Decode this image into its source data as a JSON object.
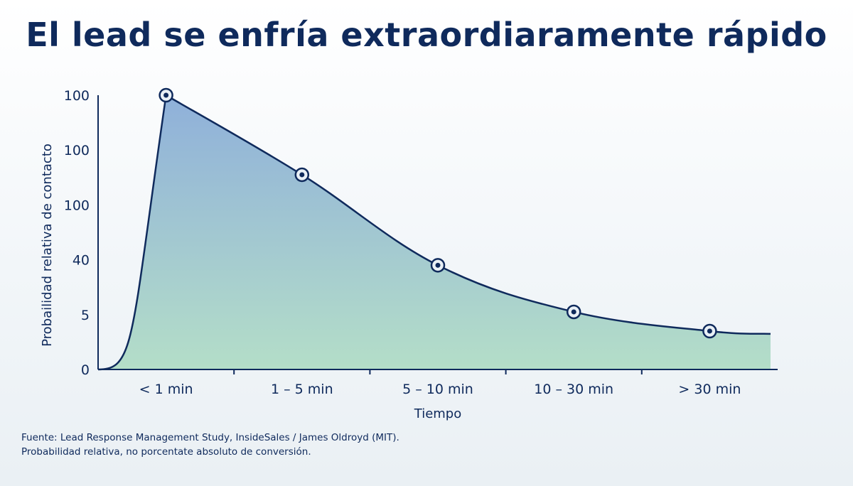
{
  "chart_data": {
    "type": "area",
    "title": "El lead se enfría extraordiaramente rápido",
    "xlabel": "Tiempo",
    "ylabel": "Probailidad relativa de contacto",
    "categories": [
      "< 1 min",
      "1 – 5 min",
      "5 – 10 min",
      "10 – 30 min",
      "> 30 min"
    ],
    "y_tick_labels": [
      "0",
      "5",
      "40",
      "100",
      "100",
      "100"
    ],
    "values": [
      100,
      71,
      38,
      21,
      14
    ],
    "ylim": [
      0,
      100
    ],
    "grid": false,
    "legend": "none",
    "colors": {
      "line": "#0f2a5c",
      "fill_top": "#8fb0da",
      "fill_bottom": "#b4dec8",
      "text": "#0f2a5c"
    }
  },
  "footer": {
    "source_line": "Fuente: Lead Response Management Study, InsideSales / James Oldroyd (MIT).",
    "note_line": "Probabilidad relativa, no porcentate absoluto de conversión."
  }
}
